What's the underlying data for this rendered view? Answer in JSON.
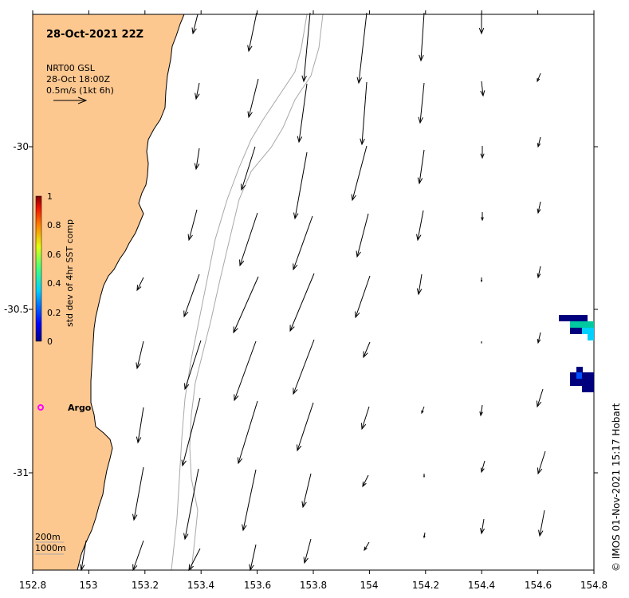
{
  "header": {
    "datetime": "28-Oct-2021 22Z",
    "product": "NRT00 GSL",
    "product_time": "28-Oct 18:00Z",
    "scale_label": "0.5m/s (1kt 6h)"
  },
  "colorbar": {
    "title": "std dev of 4hr SST comp",
    "ticks": [
      "1",
      "0.8",
      "0.6",
      "0.4",
      "0.2",
      "0"
    ]
  },
  "axes": {
    "x_ticks": [
      "152.8",
      "153",
      "153.2",
      "153.4",
      "153.6",
      "153.8",
      "154",
      "154.2",
      "154.4",
      "154.6",
      "154.8"
    ],
    "y_ticks": [
      "-30",
      "-30.5",
      "-31"
    ]
  },
  "argo": {
    "label": "Argo",
    "color": "#ff00ff"
  },
  "contours": {
    "label_200": "200m",
    "label_1000": "1000m"
  },
  "credit": "© IMOS 01-Nov-2021 15:17 Hobart",
  "colors": {
    "land": "#fdc890",
    "contour": "#a8a8a8",
    "arrow": "#000000"
  }
}
